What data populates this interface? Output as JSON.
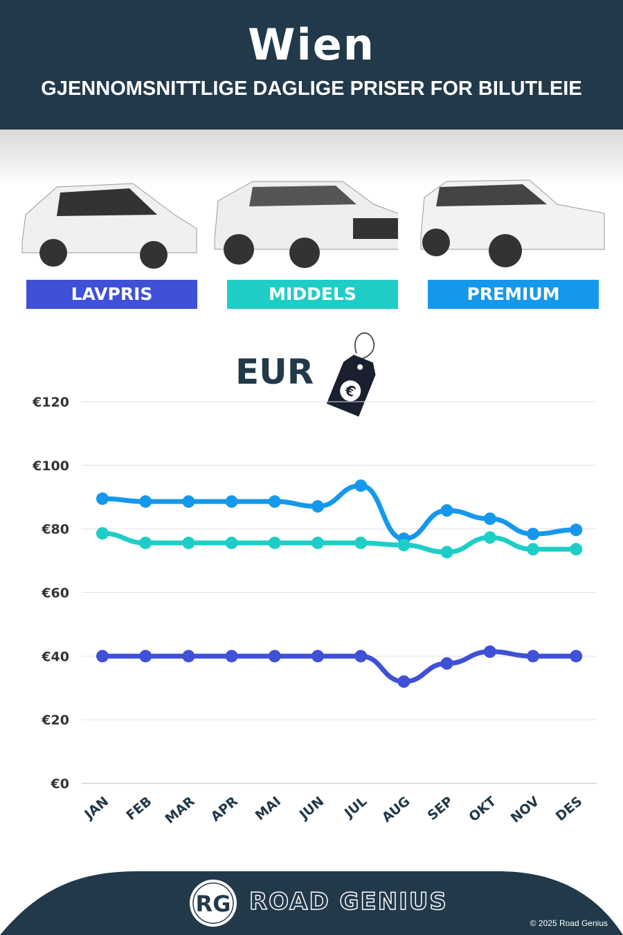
{
  "header": {
    "title": "Wien",
    "subtitle": "GJENNOMSNITTLIGE DAGLIGE PRISER FOR BILUTLEIE"
  },
  "categories": [
    {
      "label": "LAVPRIS",
      "color": "#3f51d6"
    },
    {
      "label": "MIDDELS",
      "color": "#1ecec6"
    },
    {
      "label": "PREMIUM",
      "color": "#1598ec"
    }
  ],
  "currency_label": "EUR",
  "currency_icon": "euro-price-tag-icon",
  "footer": {
    "brand": "ROAD GENIUS",
    "logo": "RG",
    "copyright": "© 2025 Road Genius"
  },
  "chart_data": {
    "type": "line",
    "categories": [
      "JAN",
      "FEB",
      "MAR",
      "APR",
      "MAI",
      "JUN",
      "JUL",
      "AUG",
      "SEP",
      "OKT",
      "NOV",
      "DES"
    ],
    "yticks": [
      "€0",
      "€20",
      "€40",
      "€60",
      "€80",
      "€100",
      "€120"
    ],
    "ylim": [
      0,
      120
    ],
    "grid": true,
    "series": [
      {
        "name": "PREMIUM",
        "color": "#1598ec",
        "values": [
          89.5,
          88.6,
          88.6,
          88.6,
          88.6,
          87.1,
          93.6,
          76.9,
          85.8,
          83.2,
          78.4,
          79.7
        ]
      },
      {
        "name": "MIDDELS",
        "color": "#1ecec6",
        "values": [
          78.6,
          75.6,
          75.6,
          75.6,
          75.6,
          75.6,
          75.6,
          74.9,
          72.7,
          77.3,
          73.6,
          73.6
        ]
      },
      {
        "name": "LAVPRIS",
        "color": "#3f51d6",
        "values": [
          40,
          40,
          40,
          40,
          40,
          40,
          40,
          32,
          37.7,
          41.4,
          40,
          40
        ]
      }
    ]
  }
}
